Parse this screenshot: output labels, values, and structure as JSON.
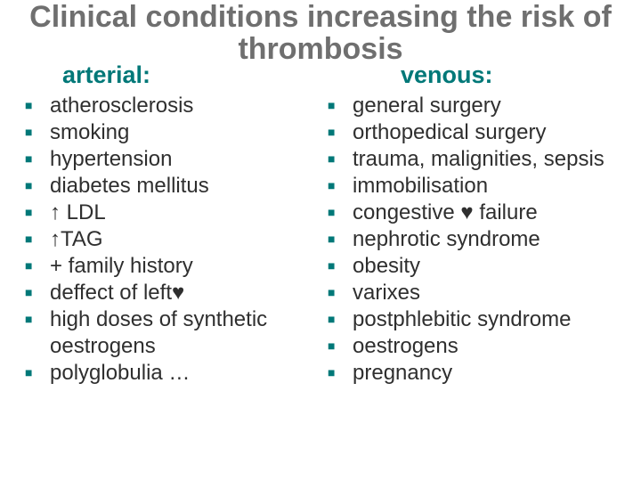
{
  "title": "Clinical conditions increasing the risk of thrombosis",
  "title_fontsize": 34,
  "title_color": "#6f6f6f",
  "bullet_color": "#007878",
  "heading_color": "#007878",
  "heading_fontsize": 27,
  "item_fontsize": 24,
  "item_color": "#2f2f2f",
  "columns": {
    "left": {
      "heading": "arterial:",
      "items": [
        "atherosclerosis",
        "smoking",
        "hypertension",
        "diabetes mellitus",
        "↑ LDL",
        "↑TAG",
        "+ family history",
        "deffect of left♥",
        "high doses of synthetic oestrogens",
        "polyglobulia …"
      ]
    },
    "right": {
      "heading": "venous:",
      "items": [
        "general surgery",
        "orthopedical surgery",
        "trauma, malignities, sepsis",
        "immobilisation",
        "congestive ♥ failure",
        "nephrotic syndrome",
        "obesity",
        "varixes",
        "postphlebitic syndrome",
        "oestrogens",
        "pregnancy"
      ]
    }
  }
}
